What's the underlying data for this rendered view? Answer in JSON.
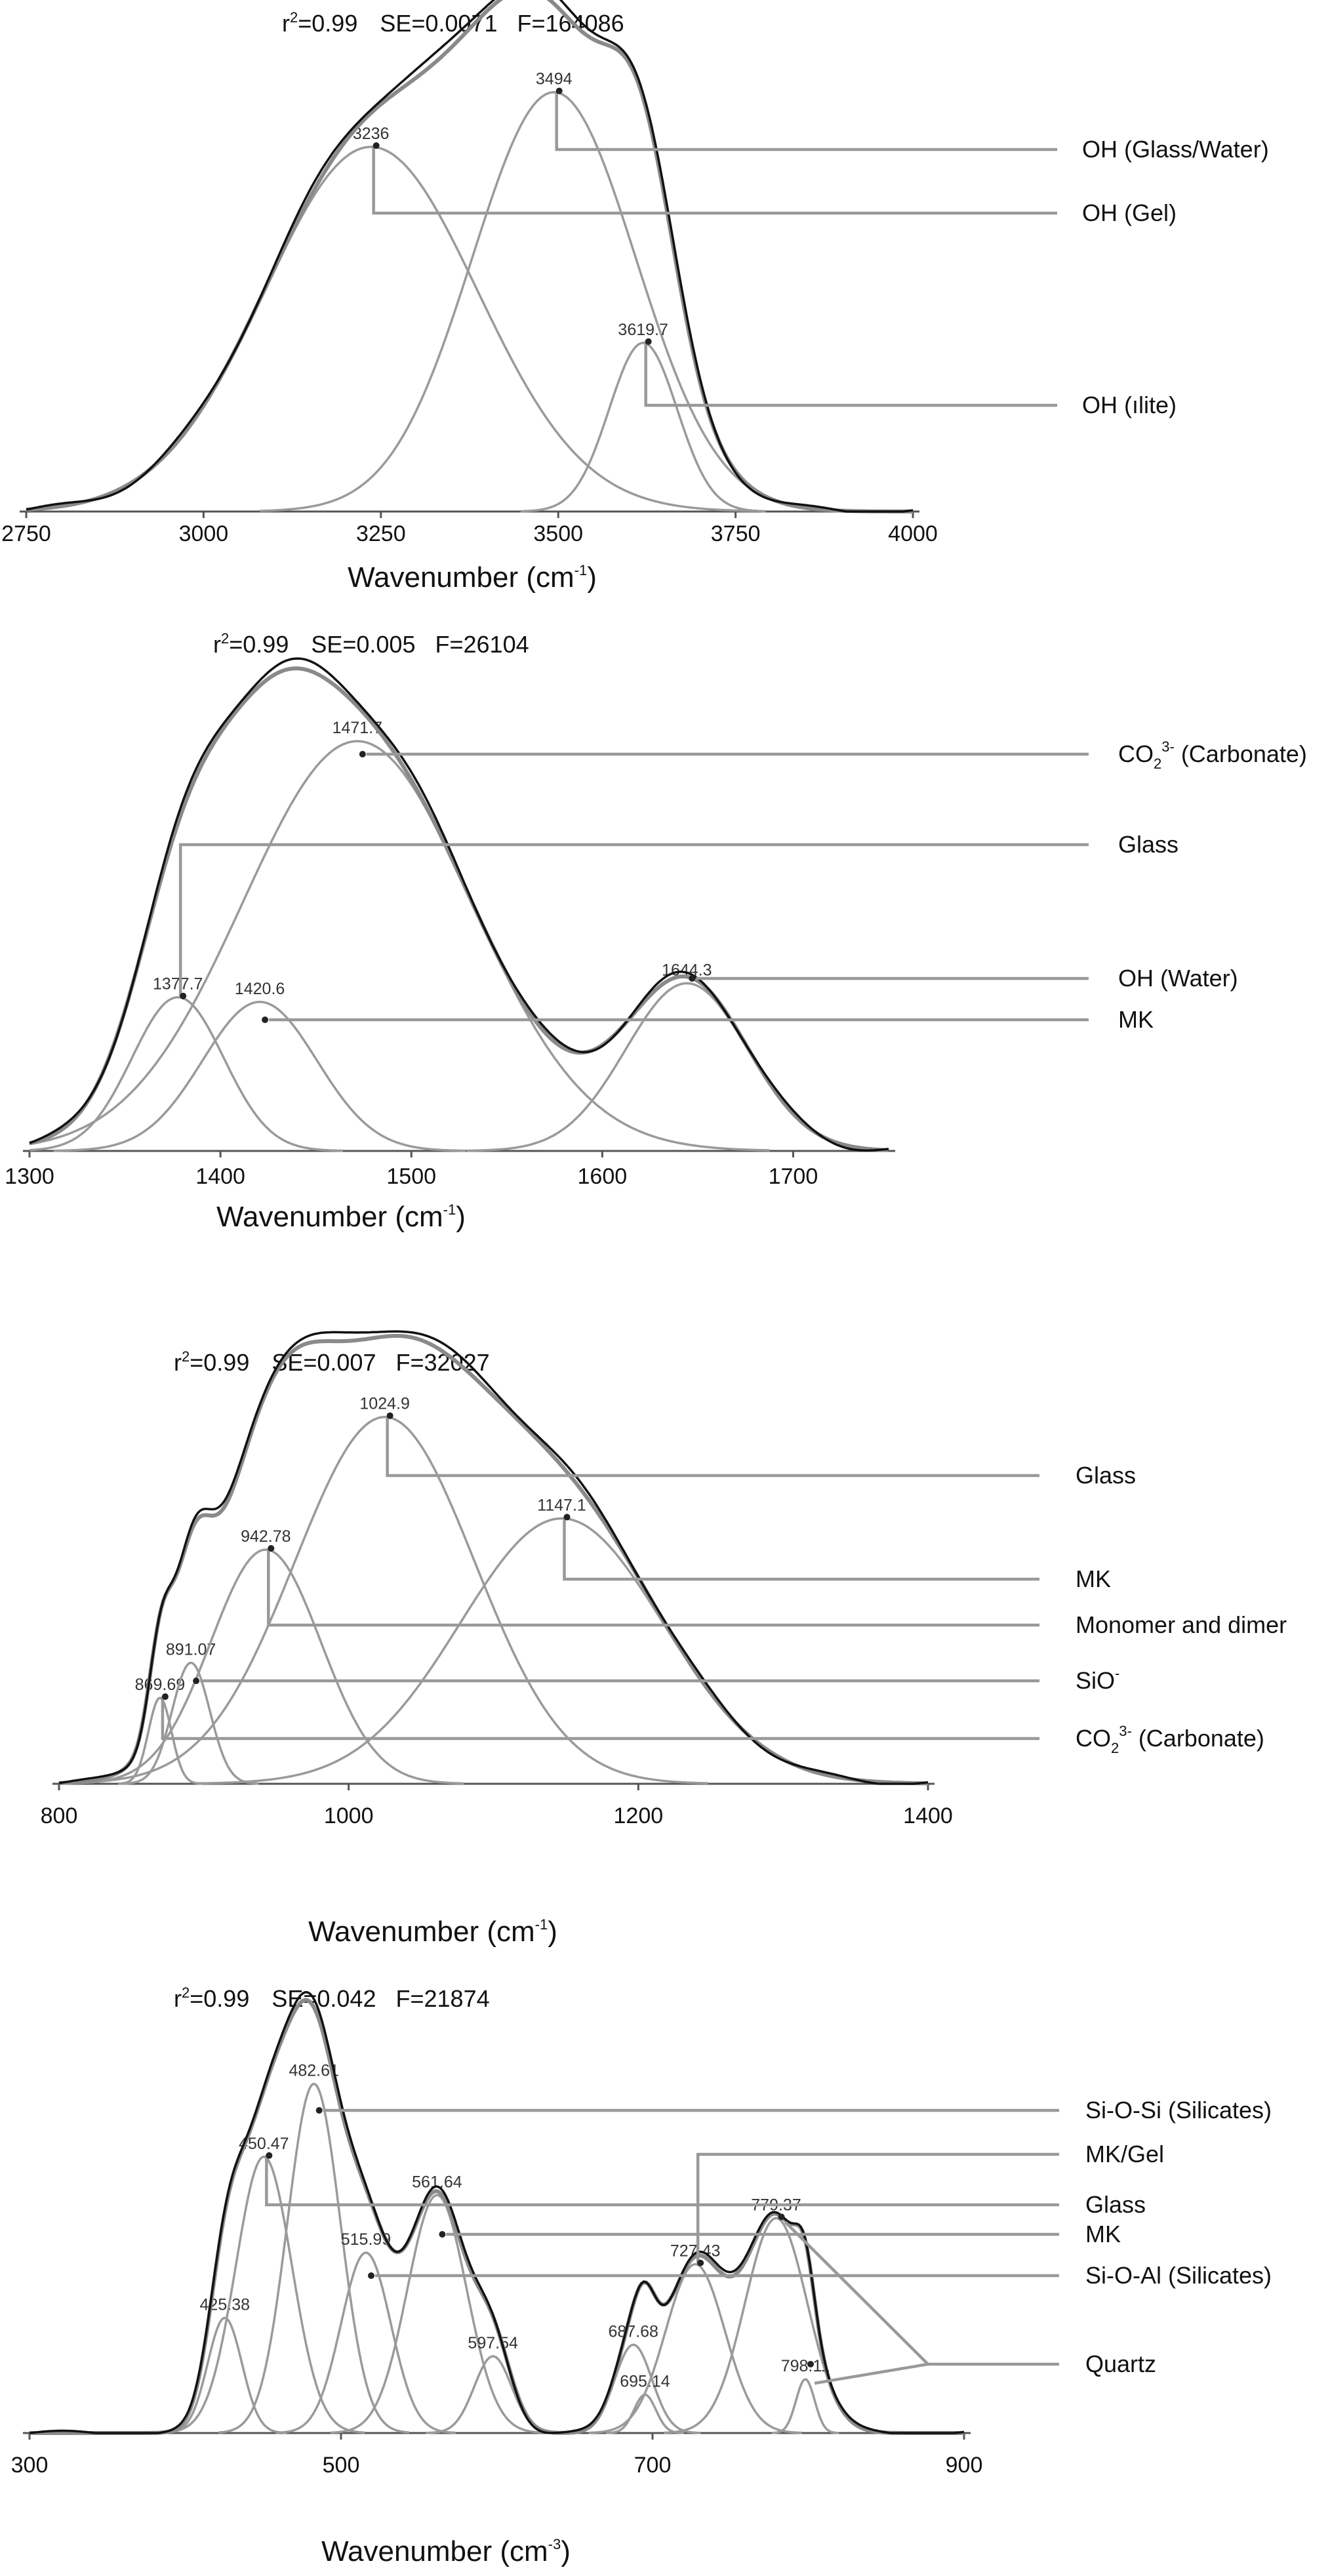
{
  "chart_data": [
    {
      "type": "line",
      "stats": {
        "r2_prefix": "r",
        "r2_sup": "2",
        "r2_value": "=0.99",
        "se": "SE=0.0071",
        "f": "F=164086"
      },
      "xlabel": {
        "text": "Wavenumber (cm",
        "sup": "-1",
        "suffix": ")"
      },
      "xlim": [
        2750,
        4000
      ],
      "ticks": [
        2750,
        3000,
        3250,
        3500,
        3750,
        4000
      ],
      "tick_labels": [
        "2750",
        "3000",
        "3250",
        "3500",
        "3750",
        "4000"
      ],
      "series": [
        {
          "peak_label": "3236",
          "center": 3236,
          "height": 0.8,
          "width": 150
        },
        {
          "peak_label": "3494",
          "center": 3494,
          "height": 0.92,
          "width": 115
        },
        {
          "peak_label": "3619.7",
          "center": 3619.7,
          "height": 0.37,
          "width": 48
        }
      ],
      "annotations": [
        {
          "text": "OH (Glass/Water)",
          "sub": "",
          "sup": "",
          "suffix": "",
          "peaks": [
            1
          ]
        },
        {
          "text": "OH (Gel)",
          "sub": "",
          "sup": "",
          "suffix": "",
          "peaks": [
            0
          ]
        },
        {
          "text": "OH (ılite)",
          "sub": "",
          "sup": "",
          "suffix": "",
          "peaks": [
            2
          ]
        }
      ]
    },
    {
      "type": "line",
      "stats": {
        "r2_prefix": "r",
        "r2_sup": "2",
        "r2_value": "=0.99",
        "se": "SE=0.005",
        "f": "F=26104"
      },
      "xlabel": {
        "text": "Wavenumber (cm",
        "sup": "-1",
        "suffix": ")"
      },
      "xlim": [
        1300,
        1750
      ],
      "ticks": [
        1300,
        1400,
        1500,
        1600,
        1700
      ],
      "tick_labels": [
        "1300",
        "1400",
        "1500",
        "1600",
        "1700"
      ],
      "series": [
        {
          "peak_label": "1377.7",
          "center": 1377.7,
          "height": 0.33,
          "width": 24
        },
        {
          "peak_label": "1420.6",
          "center": 1420.6,
          "height": 0.32,
          "width": 30
        },
        {
          "peak_label": "1471.7",
          "center": 1471.7,
          "height": 0.88,
          "width": 60
        },
        {
          "peak_label": "1644.3",
          "center": 1644.3,
          "height": 0.36,
          "width": 32
        }
      ],
      "annotations": [
        {
          "text": "CO",
          "sub": "2",
          "sup": "3-",
          "suffix": " (Carbonate)",
          "peaks": [
            2
          ]
        },
        {
          "text": "Glass",
          "sub": "",
          "sup": "",
          "suffix": "",
          "peaks": [
            0
          ]
        },
        {
          "text": "OH (Water)",
          "sub": "",
          "sup": "",
          "suffix": "",
          "peaks": [
            3
          ]
        },
        {
          "text": "MK",
          "sub": "",
          "sup": "",
          "suffix": "",
          "peaks": [
            1
          ]
        }
      ]
    },
    {
      "type": "line",
      "stats": {
        "r2_prefix": "r",
        "r2_sup": "2",
        "r2_value": "=0.99",
        "se": "SE=0.007",
        "f": "F=32027"
      },
      "xlabel": {
        "text": "Wavenumber (cm",
        "sup": "-1",
        "suffix": ")"
      },
      "xlim": [
        800,
        1400
      ],
      "ticks": [
        800,
        1000,
        1200,
        1400
      ],
      "tick_labels": [
        "800",
        "1000",
        "1200",
        "1400"
      ],
      "series": [
        {
          "peak_label": "869.69",
          "center": 869.69,
          "height": 0.22,
          "width": 8
        },
        {
          "peak_label": "891.07",
          "center": 891.07,
          "height": 0.31,
          "width": 13
        },
        {
          "peak_label": "942.78",
          "center": 942.78,
          "height": 0.6,
          "width": 38
        },
        {
          "peak_label": "1024.9",
          "center": 1024.9,
          "height": 0.94,
          "width": 62
        },
        {
          "peak_label": "1147.1",
          "center": 1147.1,
          "height": 0.68,
          "width": 70
        }
      ],
      "annotations": [
        {
          "text": "Glass",
          "sub": "",
          "sup": "",
          "suffix": "",
          "peaks": [
            3
          ]
        },
        {
          "text": "MK",
          "sub": "",
          "sup": "",
          "suffix": "",
          "peaks": [
            4
          ]
        },
        {
          "text": "Monomer and dimer",
          "sub": "",
          "sup": "",
          "suffix": "",
          "peaks": [
            2
          ]
        },
        {
          "text": "SiO",
          "sub": "",
          "sup": "-",
          "suffix": "",
          "peaks": [
            1
          ]
        },
        {
          "text": "CO",
          "sub": "2",
          "sup": "3-",
          "suffix": " (Carbonate)",
          "peaks": [
            0
          ]
        }
      ]
    },
    {
      "type": "line",
      "stats": {
        "r2_prefix": "r",
        "r2_sup": "2",
        "r2_value": "=0.99",
        "se": "SE=0.042",
        "f": "F=21874"
      },
      "xlabel": {
        "text": "Wavenumber (cm",
        "sup": "-3",
        "suffix": ")"
      },
      "xlim": [
        300,
        900
      ],
      "ticks": [
        300,
        500,
        700,
        900
      ],
      "tick_labels": [
        "300",
        "500",
        "700",
        "900"
      ],
      "series": [
        {
          "peak_label": "425.38",
          "center": 425.38,
          "height": 0.3,
          "width": 11
        },
        {
          "peak_label": "450.47",
          "center": 450.47,
          "height": 0.72,
          "width": 18
        },
        {
          "peak_label": "482.61",
          "center": 482.61,
          "height": 0.91,
          "width": 17
        },
        {
          "peak_label": "515.99",
          "center": 515.99,
          "height": 0.47,
          "width": 16
        },
        {
          "peak_label": "561.64",
          "center": 561.64,
          "height": 0.62,
          "width": 19
        },
        {
          "peak_label": "597.54",
          "center": 597.54,
          "height": 0.2,
          "width": 12
        },
        {
          "peak_label": "687.68",
          "center": 687.68,
          "height": 0.23,
          "width": 12
        },
        {
          "peak_label": "695.14",
          "center": 695.14,
          "height": 0.1,
          "width": 7
        },
        {
          "peak_label": "727.43",
          "center": 727.43,
          "height": 0.44,
          "width": 19
        },
        {
          "peak_label": "779.37",
          "center": 779.37,
          "height": 0.56,
          "width": 20
        },
        {
          "peak_label": "798.11",
          "center": 798.11,
          "height": 0.14,
          "width": 6
        }
      ],
      "annotations": [
        {
          "text": "Si-O-Si (Silicates)",
          "sub": "",
          "sup": "",
          "suffix": "",
          "peaks": [
            2
          ]
        },
        {
          "text": "MK/Gel",
          "sub": "",
          "sup": "",
          "suffix": "",
          "peaks": [
            8
          ]
        },
        {
          "text": "Glass",
          "sub": "",
          "sup": "",
          "suffix": "",
          "peaks": [
            1
          ]
        },
        {
          "text": "MK",
          "sub": "",
          "sup": "",
          "suffix": "",
          "peaks": [
            4
          ]
        },
        {
          "text": "Si-O-Al (Silicates)",
          "sub": "",
          "sup": "",
          "suffix": "",
          "peaks": [
            3
          ]
        },
        {
          "text": "Quartz",
          "sub": "",
          "sup": "",
          "suffix": "",
          "peaks": [
            9,
            10
          ]
        }
      ]
    }
  ]
}
